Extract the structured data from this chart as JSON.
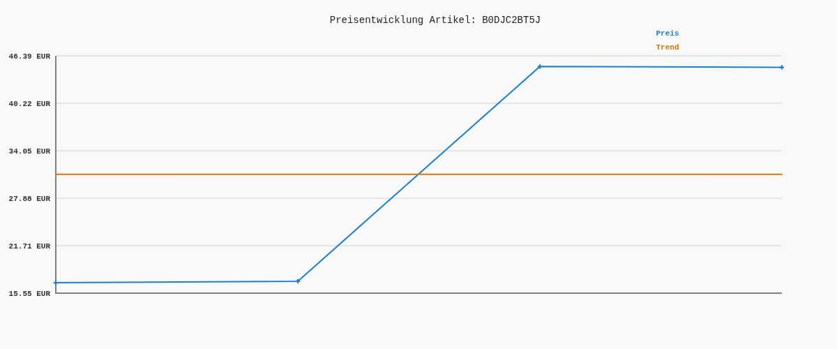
{
  "chart_data": {
    "type": "line",
    "title": "Preisentwicklung Artikel: B0DJC2BT5J",
    "categories": [
      null,
      null,
      null,
      null
    ],
    "series": [
      {
        "name": "Preis",
        "color": "#1a7fd0",
        "values": [
          16.9,
          17.1,
          45.0,
          44.9
        ],
        "marker": "cross"
      },
      {
        "name": "Trend",
        "color": "#d97400",
        "values": [
          31.0,
          31.0,
          31.0,
          31.0
        ]
      }
    ],
    "ylim": [
      15.55,
      46.39
    ],
    "yticks": [
      {
        "value": 15.55,
        "label": "15.55 EUR"
      },
      {
        "value": 21.71,
        "label": "21.71 EUR"
      },
      {
        "value": 27.88,
        "label": "27.88 EUR"
      },
      {
        "value": 34.05,
        "label": "34.05 EUR"
      },
      {
        "value": 40.22,
        "label": "40.22 EUR"
      },
      {
        "value": 46.39,
        "label": "46.39 EUR"
      }
    ],
    "grid": "y",
    "legend": "top right",
    "line_style": "solid"
  }
}
